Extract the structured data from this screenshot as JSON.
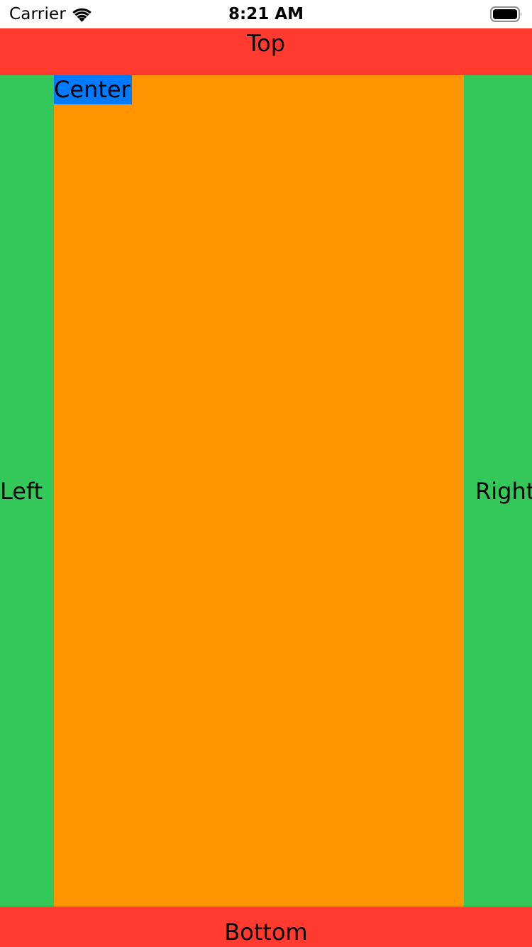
{
  "status_bar": {
    "carrier": "Carrier",
    "time": "8:21 AM",
    "wifi_icon": "wifi-icon",
    "battery_icon": "battery-icon"
  },
  "layout": {
    "top": "Top",
    "left": "Left",
    "center": "Center",
    "right": "Right",
    "bottom": "Bottom"
  },
  "colors": {
    "top_bottom": "#ff3b30",
    "sides": "#34c759",
    "center": "#ff9500",
    "center_label_bg": "#007aff"
  }
}
